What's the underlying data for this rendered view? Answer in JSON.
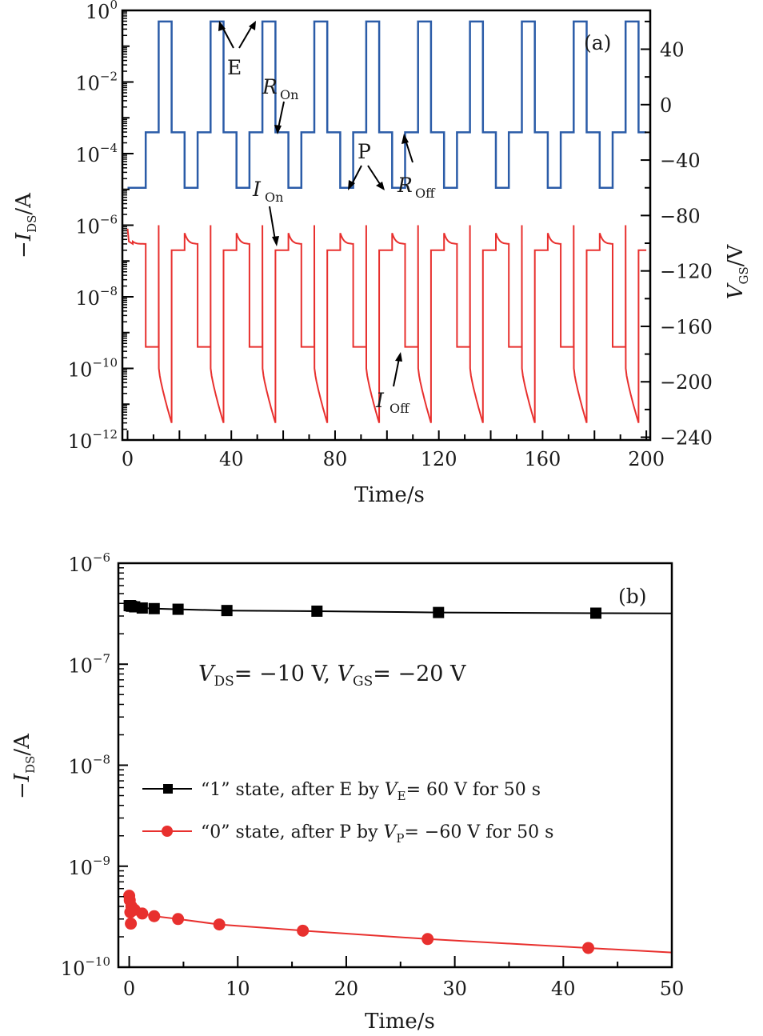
{
  "chart_data": [
    {
      "panel": "(a)",
      "type": "line",
      "xlabel": "Time/s",
      "ylabel_left": {
        "prefix": "−",
        "main": "I",
        "sub": "DS",
        "suffix": "/A"
      },
      "ylabel_right": {
        "main": "V",
        "sub": "GS",
        "suffix": "/V"
      },
      "xlim": [
        -2,
        201.5
      ],
      "ylim_left_log10": [
        -12,
        0
      ],
      "ylim_right": [
        -242,
        68
      ],
      "x_ticks": [
        "0",
        "40",
        "80",
        "120",
        "160",
        "200"
      ],
      "x_tick_values": [
        0,
        40,
        80,
        120,
        160,
        200
      ],
      "y_left_ticks": [
        {
          "base": "10",
          "exp": "0",
          "value_log10": 0
        },
        {
          "base": "10",
          "exp": "−2",
          "value_log10": -2
        },
        {
          "base": "10",
          "exp": "−4",
          "value_log10": -4
        },
        {
          "base": "10",
          "exp": "−6",
          "value_log10": -6
        },
        {
          "base": "10",
          "exp": "−8",
          "value_log10": -8
        },
        {
          "base": "10",
          "exp": "−10",
          "value_log10": -10
        },
        {
          "base": "10",
          "exp": "−12",
          "value_log10": -12
        }
      ],
      "y_right_ticks": [
        {
          "label": "40",
          "value": 40
        },
        {
          "label": "0",
          "value": 0
        },
        {
          "label": "−40",
          "value": -40
        },
        {
          "label": "−80",
          "value": -80
        },
        {
          "label": "−120",
          "value": -120
        },
        {
          "label": "−160",
          "value": -160
        },
        {
          "label": "−200",
          "value": -200
        },
        {
          "label": "−240",
          "value": -240
        }
      ],
      "series": [
        {
          "name": "V_GS",
          "axis": "right",
          "color": "#2b5ca8",
          "period_s": 20,
          "cycle_offset_s": 2,
          "segments": [
            {
              "duration_s": 5,
              "value_V": -60
            },
            {
              "duration_s": 5,
              "value_V": -20
            },
            {
              "duration_s": 5,
              "value_V": 60
            },
            {
              "duration_s": 5,
              "value_V": -20
            }
          ],
          "initial_value_V": -60
        },
        {
          "name": "-I_DS",
          "axis": "left",
          "color": "#e8302e",
          "period_s": 20,
          "cycle_offset_s": 2,
          "segments": [
            {
              "duration_s": 5,
              "start_A": 6e-07,
              "end_A": 3e-07,
              "shape": "decay"
            },
            {
              "duration_s": 5,
              "start_A": 4e-10,
              "end_A": 4e-10,
              "shape": "flat"
            },
            {
              "duration_s": 5,
              "spike_A": 1e-06,
              "start_A": 1e-10,
              "end_A": 3e-12,
              "shape": "spike-decay"
            },
            {
              "duration_s": 5,
              "start_A": 2e-07,
              "end_A": 2e-07,
              "shape": "flat"
            }
          ]
        }
      ],
      "annotations": {
        "panel_label": "(a)",
        "E": "E",
        "P": "P",
        "R_On": {
          "main": "R",
          "sub": "On"
        },
        "R_Off": {
          "main": "R",
          "sub": "Off"
        },
        "I_On": {
          "main": "I",
          "sub": "On"
        },
        "I_Off": {
          "main": "I",
          "sub": "Off"
        }
      }
    },
    {
      "panel": "(b)",
      "type": "scatter",
      "xlabel": "Time/s",
      "ylabel": {
        "prefix": "−",
        "main": "I",
        "sub": "DS",
        "suffix": "/A"
      },
      "xlim": [
        -1,
        50
      ],
      "ylim_log10": [
        -10,
        -6
      ],
      "x_ticks": [
        "0",
        "10",
        "20",
        "30",
        "40",
        "50"
      ],
      "x_tick_values": [
        0,
        10,
        20,
        30,
        40,
        50
      ],
      "y_ticks": [
        {
          "base": "10",
          "exp": "−6",
          "value_log10": -6
        },
        {
          "base": "10",
          "exp": "−7",
          "value_log10": -7
        },
        {
          "base": "10",
          "exp": "−8",
          "value_log10": -8
        },
        {
          "base": "10",
          "exp": "−9",
          "value_log10": -9
        },
        {
          "base": "10",
          "exp": "−10",
          "value_log10": -10
        }
      ],
      "condition": {
        "v1": "V",
        "s1": "DS",
        "t1": "= −10 V, ",
        "v2": "V",
        "s2": "GS",
        "t2": "= −20 V"
      },
      "series": [
        {
          "name": "“1” state",
          "legend": {
            "pre": "“1” state, after E by ",
            "v": "V",
            "sub": "E",
            "post": "= 60 V for 50 s"
          },
          "color": "#000000",
          "marker": "square",
          "x": [
            0.0,
            0.1,
            0.2,
            0.5,
            1.2,
            2.3,
            4.5,
            9.0,
            17.3,
            28.5,
            43.0
          ],
          "y": [
            3.8e-07,
            3.8e-07,
            3.75e-07,
            3.7e-07,
            3.6e-07,
            3.55e-07,
            3.5e-07,
            3.4e-07,
            3.35e-07,
            3.25e-07,
            3.2e-07
          ],
          "line_end": [
            50,
            3.18e-07
          ]
        },
        {
          "name": "“0” state",
          "legend": {
            "pre": "“0” state, after P by ",
            "v": "V",
            "sub": "P",
            "post": "= −60 V for 50 s"
          },
          "color": "#e8302e",
          "marker": "circle",
          "x": [
            0.0,
            0.05,
            0.1,
            0.15,
            0.2,
            0.5,
            1.2,
            2.3,
            4.5,
            8.3,
            16.0,
            27.5,
            42.3
          ],
          "y": [
            5.1e-10,
            4.6e-10,
            3.5e-10,
            2.7e-10,
            4e-10,
            3.7e-10,
            3.4e-10,
            3.2e-10,
            3e-10,
            2.65e-10,
            2.3e-10,
            1.9e-10,
            1.55e-10
          ],
          "line_end": [
            50,
            1.4e-10
          ]
        }
      ],
      "annotations": {
        "panel_label": "(b)"
      }
    }
  ]
}
